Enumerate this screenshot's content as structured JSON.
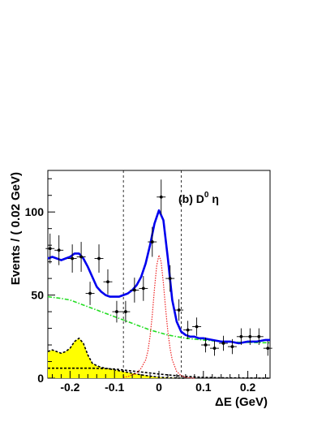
{
  "chart_data": {
    "type": "scatter",
    "title": "",
    "annotation": {
      "prefix": "(b) D",
      "sup": "0",
      "suffix": " η"
    },
    "xlabel": "ΔE (GeV)",
    "ylabel": "Events / ( 0.02  GeV)",
    "xlim": [
      -0.25,
      0.25
    ],
    "ylim": [
      0,
      125
    ],
    "x_ticks": [
      -0.2,
      -0.1,
      0,
      0.1,
      0.2
    ],
    "x_tick_labels": [
      "-0.2",
      "-0.1",
      "0",
      "0.1",
      "0.2"
    ],
    "y_ticks": [
      0,
      50,
      100
    ],
    "y_tick_labels": [
      "0",
      "50",
      "100"
    ],
    "signal_window": [
      -0.08,
      0.05
    ],
    "grid": false,
    "colors": {
      "total_fit": "#0000ee",
      "signal": "#ee2222",
      "continuum": "#22dd22",
      "peaking_bkg_fill": "#ffff00",
      "data": "#000000"
    },
    "data_points": [
      {
        "x": -0.245,
        "y": 78,
        "err": 9
      },
      {
        "x": -0.225,
        "y": 77,
        "err": 9
      },
      {
        "x": -0.195,
        "y": 72,
        "err": 8.5
      },
      {
        "x": -0.175,
        "y": 73,
        "err": 9
      },
      {
        "x": -0.155,
        "y": 51,
        "err": 7
      },
      {
        "x": -0.135,
        "y": 72,
        "err": 8.5
      },
      {
        "x": -0.115,
        "y": 58,
        "err": 7.5
      },
      {
        "x": -0.095,
        "y": 40,
        "err": 6.5
      },
      {
        "x": -0.075,
        "y": 40,
        "err": 6.5
      },
      {
        "x": -0.055,
        "y": 53,
        "err": 7.5
      },
      {
        "x": -0.035,
        "y": 54,
        "err": 7.5
      },
      {
        "x": -0.015,
        "y": 82,
        "err": 9
      },
      {
        "x": 0.005,
        "y": 109,
        "err": 10.5
      },
      {
        "x": 0.025,
        "y": 60,
        "err": 8
      },
      {
        "x": 0.045,
        "y": 41,
        "err": 6.5
      },
      {
        "x": 0.065,
        "y": 29,
        "err": 5.5
      },
      {
        "x": 0.085,
        "y": 31,
        "err": 5.5
      },
      {
        "x": 0.105,
        "y": 20,
        "err": 4.5
      },
      {
        "x": 0.125,
        "y": 18,
        "err": 4.5
      },
      {
        "x": 0.145,
        "y": 21,
        "err": 4.5
      },
      {
        "x": 0.165,
        "y": 19,
        "err": 4.5
      },
      {
        "x": 0.185,
        "y": 25,
        "err": 5
      },
      {
        "x": 0.205,
        "y": 25,
        "err": 5
      },
      {
        "x": 0.225,
        "y": 25,
        "err": 5
      },
      {
        "x": 0.245,
        "y": 18,
        "err": 4.5
      }
    ],
    "total_fit": {
      "x": [
        -0.25,
        -0.24,
        -0.23,
        -0.22,
        -0.21,
        -0.2,
        -0.19,
        -0.18,
        -0.17,
        -0.16,
        -0.15,
        -0.14,
        -0.13,
        -0.12,
        -0.11,
        -0.1,
        -0.09,
        -0.08,
        -0.07,
        -0.06,
        -0.05,
        -0.04,
        -0.03,
        -0.02,
        -0.01,
        0,
        0.01,
        0.02,
        0.03,
        0.04,
        0.05,
        0.06,
        0.07,
        0.08,
        0.09,
        0.1,
        0.12,
        0.14,
        0.16,
        0.18,
        0.2,
        0.22,
        0.24,
        0.25
      ],
      "y": [
        72,
        73,
        72,
        71,
        72,
        73,
        75,
        75,
        72,
        67,
        61,
        55,
        52,
        50,
        49,
        49,
        49,
        50,
        51,
        53,
        56,
        61,
        69,
        80,
        93,
        101,
        95,
        72,
        47,
        34,
        28,
        26,
        25,
        25,
        24,
        24,
        23,
        22,
        22,
        21,
        22,
        22,
        23,
        23
      ]
    },
    "signal": {
      "x": [
        -0.08,
        -0.07,
        -0.06,
        -0.05,
        -0.04,
        -0.03,
        -0.025,
        -0.02,
        -0.015,
        -0.01,
        -0.005,
        0,
        0.005,
        0.01,
        0.015,
        0.02,
        0.025,
        0.03,
        0.04,
        0.05,
        0.06,
        0.08
      ],
      "y": [
        0.5,
        1,
        2,
        3,
        6,
        11,
        16,
        25,
        38,
        54,
        68,
        74,
        70,
        57,
        42,
        28,
        18,
        11,
        4,
        1.5,
        0.5,
        0
      ]
    },
    "continuum": {
      "x": [
        -0.25,
        -0.22,
        -0.2,
        -0.18,
        -0.16,
        -0.14,
        -0.12,
        -0.1,
        -0.08,
        -0.06,
        -0.04,
        -0.02,
        0,
        0.02,
        0.04,
        0.06,
        0.08,
        0.1,
        0.12,
        0.14,
        0.16,
        0.18,
        0.2,
        0.22,
        0.25
      ],
      "y": [
        49,
        48,
        47,
        45,
        43,
        41,
        39,
        37,
        35,
        33,
        31,
        29,
        27.5,
        26,
        25,
        24,
        23.5,
        23,
        22.5,
        22,
        21.8,
        21.6,
        21.5,
        21.4,
        21.3
      ]
    },
    "peaking_background": {
      "x": [
        -0.25,
        -0.24,
        -0.23,
        -0.22,
        -0.21,
        -0.2,
        -0.19,
        -0.18,
        -0.17,
        -0.16,
        -0.15,
        -0.14,
        -0.13,
        -0.12,
        -0.11,
        -0.1,
        -0.09,
        -0.08,
        -0.06,
        -0.04,
        -0.02,
        0,
        0.02,
        0.04,
        0.06
      ],
      "y": [
        16,
        17,
        16,
        15,
        16,
        18,
        22,
        24,
        21,
        14,
        9,
        7.5,
        6.5,
        6,
        5.5,
        5,
        4.5,
        4,
        3,
        2,
        1.2,
        0.6,
        0.3,
        0.1,
        0
      ]
    },
    "flat_background": {
      "x": [
        -0.25,
        -0.15,
        -0.1,
        -0.05,
        0,
        0.05,
        0.1,
        0.15,
        0.25
      ],
      "y": [
        6,
        6,
        5.5,
        4,
        2.5,
        1.2,
        0.5,
        0.2,
        0
      ]
    }
  }
}
